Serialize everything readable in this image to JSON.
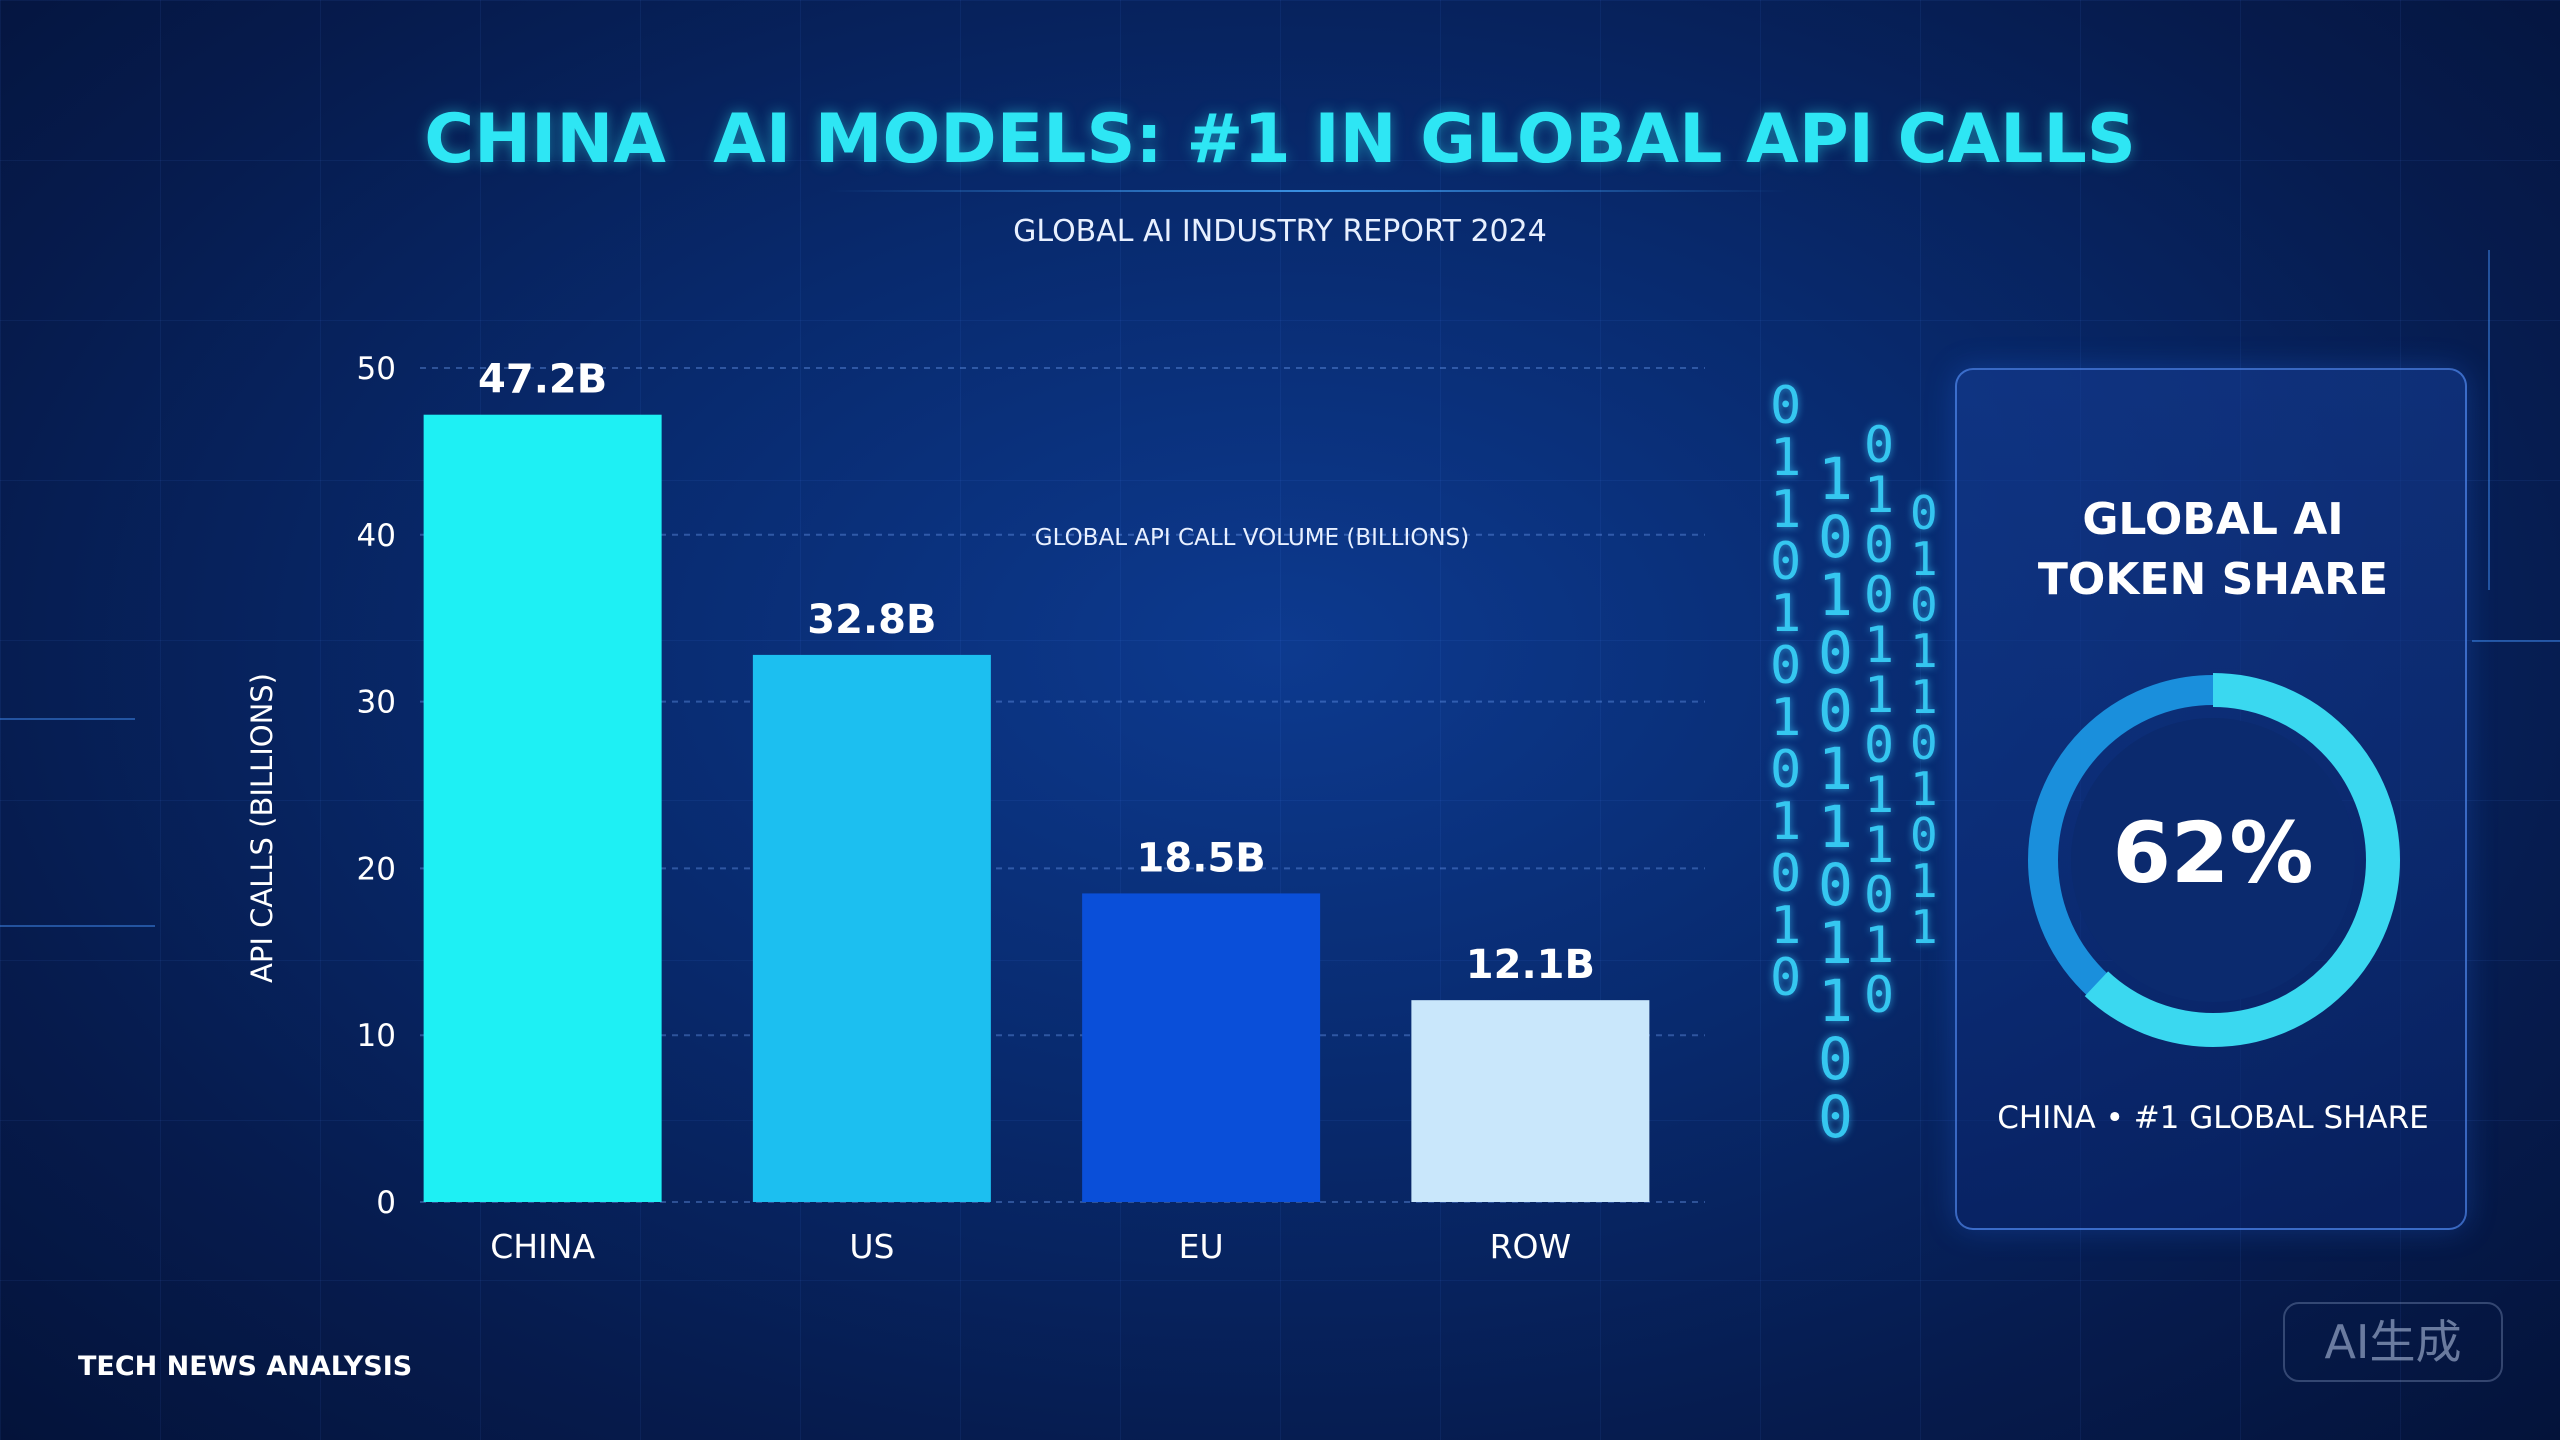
{
  "title": "CHINA  AI MODELS: #1 IN GLOBAL API CALLS",
  "subtitle": "GLOBAL AI INDUSTRY REPORT 2024",
  "footer": "TECH NEWS ANALYSIS",
  "badge": "AI生成",
  "chart_data": {
    "type": "bar",
    "caption": "GLOBAL API CALL VOLUME (BILLIONS)",
    "ylabel": "API CALLS (BILLIONS)",
    "ylim": [
      0,
      50
    ],
    "yticks": [
      "0",
      "10",
      "20",
      "30",
      "40",
      "50"
    ],
    "grid": true,
    "categories": [
      "CHINA",
      "US",
      "EU",
      "ROW"
    ],
    "values": [
      47.2,
      32.8,
      18.5,
      12.1
    ],
    "value_labels": [
      "47.2B",
      "32.8B",
      "18.5B",
      "12.1B"
    ],
    "colors": [
      "#1ef0f4",
      "#1cbff0",
      "#0a4fd9",
      "#c9e7fb"
    ]
  },
  "binary_stream": {
    "columns": [
      "0\n1\n1\n0\n1\n0\n1\n0\n1\n0\n1\n0",
      "1\n0\n1\n0\n0\n1\n1\n0\n1\n1\n0\n0",
      "0\n1\n0\n0\n1\n1\n0\n1\n1\n0\n1\n0",
      "0\n1\n0\n1\n1\n0\n1\n0\n1\n1"
    ]
  },
  "token_share": {
    "title_line1": "GLOBAL AI",
    "title_line2": "TOKEN SHARE",
    "value": 62,
    "display": "62%",
    "caption": "CHINA • #1 GLOBAL SHARE"
  }
}
